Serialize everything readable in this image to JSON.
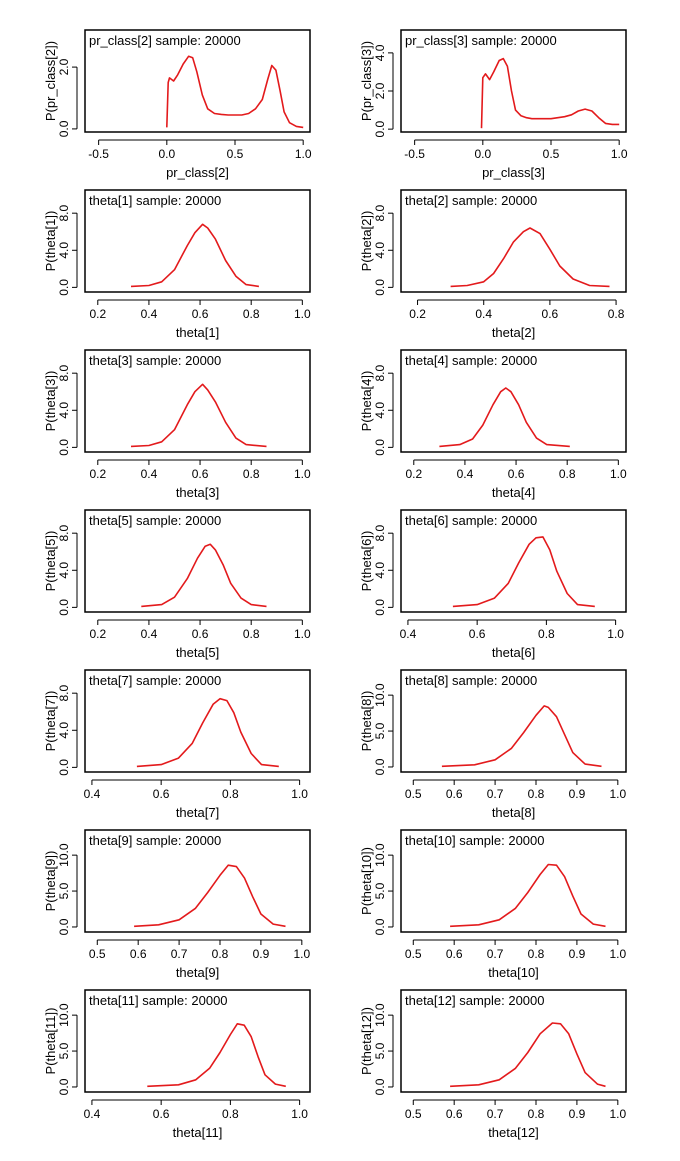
{
  "style": {
    "curve_color": "#e31a1c",
    "frame_color": "#000000"
  },
  "chart_data": [
    {
      "type": "line",
      "title": "pr_class[2] sample: 20000",
      "xlabel": "pr_class[2]",
      "ylabel": "P(pr_class[2])",
      "xlim": [
        -0.6,
        1.05
      ],
      "xticks": [
        "-0.5",
        "0.0",
        "0.5",
        "1.0"
      ],
      "xtick_values": [
        -0.5,
        0,
        0.5,
        1
      ],
      "ylim": [
        -0.1,
        3.2
      ],
      "yticks": [
        "0.0",
        "2.0"
      ],
      "ytick_values": [
        0,
        2
      ],
      "series": [
        {
          "x": [
            0.0,
            0.01,
            0.02,
            0.05,
            0.08,
            0.12,
            0.16,
            0.19,
            0.22,
            0.26,
            0.3,
            0.35,
            0.4,
            0.45,
            0.5,
            0.55,
            0.6,
            0.65,
            0.7,
            0.74,
            0.77,
            0.8,
            0.83,
            0.86,
            0.9,
            0.95,
            1.0
          ],
          "y": [
            0.05,
            1.5,
            1.65,
            1.55,
            1.75,
            2.1,
            2.35,
            2.3,
            1.85,
            1.1,
            0.65,
            0.5,
            0.47,
            0.45,
            0.45,
            0.45,
            0.5,
            0.65,
            0.95,
            1.6,
            2.05,
            1.9,
            1.25,
            0.55,
            0.2,
            0.08,
            0.05
          ]
        }
      ]
    },
    {
      "type": "line",
      "title": "pr_class[3] sample: 20000",
      "xlabel": "pr_class[3]",
      "ylabel": "P(pr_class[3])",
      "xlim": [
        -0.6,
        1.05
      ],
      "xticks": [
        "-0.5",
        "0.0",
        "0.5",
        "1.0"
      ],
      "xtick_values": [
        -0.5,
        0,
        0.5,
        1
      ],
      "ylim": [
        -0.15,
        5.2
      ],
      "yticks": [
        "0.0",
        "2.0",
        "4.0"
      ],
      "ytick_values": [
        0,
        2,
        4
      ],
      "series": [
        {
          "x": [
            -0.01,
            0.0,
            0.02,
            0.05,
            0.08,
            0.12,
            0.15,
            0.18,
            0.21,
            0.24,
            0.28,
            0.32,
            0.36,
            0.4,
            0.45,
            0.5,
            0.55,
            0.6,
            0.65,
            0.7,
            0.75,
            0.8,
            0.85,
            0.9,
            0.95,
            1.0
          ],
          "y": [
            0.05,
            2.7,
            2.9,
            2.6,
            3.0,
            3.6,
            3.7,
            3.3,
            2.0,
            1.0,
            0.7,
            0.6,
            0.55,
            0.55,
            0.55,
            0.55,
            0.6,
            0.65,
            0.75,
            0.95,
            1.05,
            0.95,
            0.6,
            0.3,
            0.25,
            0.25
          ]
        }
      ]
    },
    {
      "type": "line",
      "title": "theta[1] sample: 20000",
      "xlabel": "theta[1]",
      "ylabel": "P(theta[1])",
      "xlim": [
        0.15,
        1.03
      ],
      "xticks": [
        "0.2",
        "0.4",
        "0.6",
        "0.8",
        "1.0"
      ],
      "xtick_values": [
        0.2,
        0.4,
        0.6,
        0.8,
        1.0
      ],
      "ylim": [
        -0.5,
        10.5
      ],
      "yticks": [
        "0.0",
        "4.0",
        "8.0"
      ],
      "ytick_values": [
        0,
        4,
        8
      ],
      "series": [
        {
          "x": [
            0.33,
            0.4,
            0.45,
            0.5,
            0.55,
            0.58,
            0.61,
            0.63,
            0.66,
            0.7,
            0.74,
            0.78,
            0.83
          ],
          "y": [
            0.1,
            0.2,
            0.6,
            1.9,
            4.5,
            5.9,
            6.8,
            6.4,
            5.2,
            2.9,
            1.2,
            0.3,
            0.1
          ]
        }
      ]
    },
    {
      "type": "line",
      "title": "theta[2] sample: 20000",
      "xlabel": "theta[2]",
      "ylabel": "P(theta[2])",
      "xlim": [
        0.15,
        0.83
      ],
      "xticks": [
        "0.2",
        "0.4",
        "0.6",
        "0.8"
      ],
      "xtick_values": [
        0.2,
        0.4,
        0.6,
        0.8
      ],
      "ylim": [
        -0.5,
        10.5
      ],
      "yticks": [
        "0.0",
        "4.0",
        "8.0"
      ],
      "ytick_values": [
        0,
        4,
        8
      ],
      "series": [
        {
          "x": [
            0.3,
            0.35,
            0.4,
            0.43,
            0.46,
            0.49,
            0.52,
            0.54,
            0.57,
            0.6,
            0.63,
            0.67,
            0.72,
            0.78
          ],
          "y": [
            0.1,
            0.2,
            0.6,
            1.5,
            3.1,
            4.9,
            6.0,
            6.4,
            5.8,
            4.1,
            2.3,
            0.9,
            0.2,
            0.1
          ]
        }
      ]
    },
    {
      "type": "line",
      "title": "theta[3] sample: 20000",
      "xlabel": "theta[3]",
      "ylabel": "P(theta[3])",
      "xlim": [
        0.15,
        1.03
      ],
      "xticks": [
        "0.2",
        "0.4",
        "0.6",
        "0.8",
        "1.0"
      ],
      "xtick_values": [
        0.2,
        0.4,
        0.6,
        0.8,
        1.0
      ],
      "ylim": [
        -0.5,
        10.5
      ],
      "yticks": [
        "0.0",
        "4.0",
        "8.0"
      ],
      "ytick_values": [
        0,
        4,
        8
      ],
      "series": [
        {
          "x": [
            0.33,
            0.4,
            0.45,
            0.5,
            0.55,
            0.58,
            0.61,
            0.63,
            0.66,
            0.7,
            0.74,
            0.78,
            0.86
          ],
          "y": [
            0.1,
            0.2,
            0.6,
            1.9,
            4.6,
            6.0,
            6.8,
            6.2,
            4.9,
            2.7,
            1.0,
            0.3,
            0.1
          ]
        }
      ]
    },
    {
      "type": "line",
      "title": "theta[4] sample: 20000",
      "xlabel": "theta[4]",
      "ylabel": "P(theta[4])",
      "xlim": [
        0.15,
        1.03
      ],
      "xticks": [
        "0.2",
        "0.4",
        "0.6",
        "0.8",
        "1.0"
      ],
      "xtick_values": [
        0.2,
        0.4,
        0.6,
        0.8,
        1.0
      ],
      "ylim": [
        -0.5,
        10.5
      ],
      "yticks": [
        "0.0",
        "4.0",
        "8.0"
      ],
      "ytick_values": [
        0,
        4,
        8
      ],
      "series": [
        {
          "x": [
            0.3,
            0.38,
            0.43,
            0.47,
            0.51,
            0.54,
            0.56,
            0.58,
            0.61,
            0.64,
            0.68,
            0.72,
            0.81
          ],
          "y": [
            0.1,
            0.3,
            0.9,
            2.4,
            4.6,
            6.0,
            6.4,
            6.0,
            4.6,
            2.7,
            1.0,
            0.3,
            0.1
          ]
        }
      ]
    },
    {
      "type": "line",
      "title": "theta[5] sample: 20000",
      "xlabel": "theta[5]",
      "ylabel": "P(theta[5])",
      "xlim": [
        0.15,
        1.03
      ],
      "xticks": [
        "0.2",
        "0.4",
        "0.6",
        "0.8",
        "1.0"
      ],
      "xtick_values": [
        0.2,
        0.4,
        0.6,
        0.8,
        1.0
      ],
      "ylim": [
        -0.5,
        10.5
      ],
      "yticks": [
        "0.0",
        "4.0",
        "8.0"
      ],
      "ytick_values": [
        0,
        4,
        8
      ],
      "series": [
        {
          "x": [
            0.37,
            0.45,
            0.5,
            0.55,
            0.59,
            0.62,
            0.64,
            0.66,
            0.69,
            0.72,
            0.76,
            0.8,
            0.86
          ],
          "y": [
            0.1,
            0.3,
            1.1,
            3.1,
            5.3,
            6.6,
            6.8,
            6.2,
            4.6,
            2.6,
            1.0,
            0.3,
            0.1
          ]
        }
      ]
    },
    {
      "type": "line",
      "title": "theta[6] sample: 20000",
      "xlabel": "theta[6]",
      "ylabel": "P(theta[6])",
      "xlim": [
        0.38,
        1.03
      ],
      "xticks": [
        "0.4",
        "0.6",
        "0.8",
        "1.0"
      ],
      "xtick_values": [
        0.4,
        0.6,
        0.8,
        1.0
      ],
      "ylim": [
        -0.5,
        10.5
      ],
      "yticks": [
        "0.0",
        "4.0",
        "8.0"
      ],
      "ytick_values": [
        0,
        4,
        8
      ],
      "series": [
        {
          "x": [
            0.53,
            0.6,
            0.65,
            0.69,
            0.72,
            0.75,
            0.77,
            0.79,
            0.81,
            0.83,
            0.86,
            0.89,
            0.94
          ],
          "y": [
            0.1,
            0.3,
            1.0,
            2.6,
            4.8,
            6.8,
            7.5,
            7.6,
            6.2,
            3.9,
            1.5,
            0.3,
            0.1
          ]
        }
      ]
    },
    {
      "type": "line",
      "title": "theta[7] sample: 20000",
      "xlabel": "theta[7]",
      "ylabel": "P(theta[7])",
      "xlim": [
        0.38,
        1.03
      ],
      "xticks": [
        "0.4",
        "0.6",
        "0.8",
        "1.0"
      ],
      "xtick_values": [
        0.4,
        0.6,
        0.8,
        1.0
      ],
      "ylim": [
        -0.5,
        10.5
      ],
      "yticks": [
        "0.0",
        "4.0",
        "8.0"
      ],
      "ytick_values": [
        0,
        4,
        8
      ],
      "series": [
        {
          "x": [
            0.53,
            0.6,
            0.65,
            0.69,
            0.72,
            0.75,
            0.77,
            0.79,
            0.81,
            0.83,
            0.86,
            0.89,
            0.94
          ],
          "y": [
            0.1,
            0.3,
            1.0,
            2.6,
            4.8,
            6.8,
            7.4,
            7.2,
            5.9,
            3.8,
            1.5,
            0.3,
            0.1
          ]
        }
      ]
    },
    {
      "type": "line",
      "title": "theta[8] sample: 20000",
      "xlabel": "theta[8]",
      "ylabel": "P(theta[8])",
      "xlim": [
        0.47,
        1.02
      ],
      "xticks": [
        "0.5",
        "0.6",
        "0.7",
        "0.8",
        "0.9",
        "1.0"
      ],
      "xtick_values": [
        0.5,
        0.6,
        0.7,
        0.8,
        0.9,
        1.0
      ],
      "ylim": [
        -0.7,
        13.5
      ],
      "yticks": [
        "0.0",
        "5.0",
        "10.0"
      ],
      "ytick_values": [
        0,
        5,
        10
      ],
      "series": [
        {
          "x": [
            0.57,
            0.65,
            0.7,
            0.74,
            0.77,
            0.8,
            0.82,
            0.83,
            0.85,
            0.87,
            0.89,
            0.92,
            0.96
          ],
          "y": [
            0.1,
            0.3,
            1.0,
            2.6,
            4.8,
            7.2,
            8.5,
            8.3,
            7.0,
            4.5,
            2.0,
            0.4,
            0.1
          ]
        }
      ]
    },
    {
      "type": "line",
      "title": "theta[9] sample: 20000",
      "xlabel": "theta[9]",
      "ylabel": "P(theta[9])",
      "xlim": [
        0.47,
        1.02
      ],
      "xticks": [
        "0.5",
        "0.6",
        "0.7",
        "0.8",
        "0.9",
        "1.0"
      ],
      "xtick_values": [
        0.5,
        0.6,
        0.7,
        0.8,
        0.9,
        1.0
      ],
      "ylim": [
        -0.7,
        13.5
      ],
      "yticks": [
        "0.0",
        "5.0",
        "10.0"
      ],
      "ytick_values": [
        0,
        5,
        10
      ],
      "series": [
        {
          "x": [
            0.59,
            0.65,
            0.7,
            0.74,
            0.77,
            0.8,
            0.82,
            0.84,
            0.86,
            0.88,
            0.9,
            0.93,
            0.96
          ],
          "y": [
            0.1,
            0.3,
            1.0,
            2.6,
            4.8,
            7.2,
            8.6,
            8.4,
            6.8,
            4.2,
            1.8,
            0.4,
            0.1
          ]
        }
      ]
    },
    {
      "type": "line",
      "title": "theta[10] sample: 20000",
      "xlabel": "theta[10]",
      "ylabel": "P(theta[10])",
      "xlim": [
        0.47,
        1.02
      ],
      "xticks": [
        "0.5",
        "0.6",
        "0.7",
        "0.8",
        "0.9",
        "1.0"
      ],
      "xtick_values": [
        0.5,
        0.6,
        0.7,
        0.8,
        0.9,
        1.0
      ],
      "ylim": [
        -0.7,
        13.5
      ],
      "yticks": [
        "0.0",
        "5.0",
        "10.0"
      ],
      "ytick_values": [
        0,
        5,
        10
      ],
      "series": [
        {
          "x": [
            0.59,
            0.66,
            0.71,
            0.75,
            0.78,
            0.81,
            0.83,
            0.85,
            0.87,
            0.89,
            0.91,
            0.94,
            0.97
          ],
          "y": [
            0.1,
            0.3,
            1.0,
            2.6,
            4.8,
            7.3,
            8.7,
            8.6,
            7.0,
            4.3,
            1.8,
            0.4,
            0.1
          ]
        }
      ]
    },
    {
      "type": "line",
      "title": "theta[11] sample: 20000",
      "xlabel": "theta[11]",
      "ylabel": "P(theta[11])",
      "xlim": [
        0.38,
        1.03
      ],
      "xticks": [
        "0.4",
        "0.6",
        "0.8",
        "1.0"
      ],
      "xtick_values": [
        0.4,
        0.6,
        0.8,
        1.0
      ],
      "ylim": [
        -0.7,
        13.5
      ],
      "yticks": [
        "0.0",
        "5.0",
        "10.0"
      ],
      "ytick_values": [
        0,
        5,
        10
      ],
      "series": [
        {
          "x": [
            0.56,
            0.65,
            0.7,
            0.74,
            0.77,
            0.8,
            0.82,
            0.84,
            0.86,
            0.88,
            0.9,
            0.93,
            0.96
          ],
          "y": [
            0.1,
            0.3,
            1.0,
            2.6,
            4.8,
            7.3,
            8.8,
            8.6,
            7.0,
            4.2,
            1.7,
            0.4,
            0.1
          ]
        }
      ]
    },
    {
      "type": "line",
      "title": "theta[12] sample: 20000",
      "xlabel": "theta[12]",
      "ylabel": "P(theta[12])",
      "xlim": [
        0.47,
        1.02
      ],
      "xticks": [
        "0.5",
        "0.6",
        "0.7",
        "0.8",
        "0.9",
        "1.0"
      ],
      "xtick_values": [
        0.5,
        0.6,
        0.7,
        0.8,
        0.9,
        1.0
      ],
      "ylim": [
        -0.7,
        13.5
      ],
      "yticks": [
        "0.0",
        "5.0",
        "10.0"
      ],
      "ytick_values": [
        0,
        5,
        10
      ],
      "series": [
        {
          "x": [
            0.59,
            0.66,
            0.71,
            0.75,
            0.78,
            0.81,
            0.84,
            0.86,
            0.88,
            0.9,
            0.92,
            0.95,
            0.97
          ],
          "y": [
            0.1,
            0.3,
            1.0,
            2.6,
            4.8,
            7.4,
            8.9,
            8.8,
            7.4,
            4.6,
            2.0,
            0.4,
            0.1
          ]
        }
      ]
    }
  ]
}
